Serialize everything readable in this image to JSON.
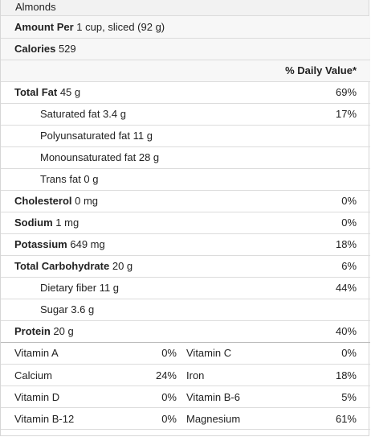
{
  "food_name": "Almonds",
  "amount": {
    "label": "Amount Per",
    "value": "1 cup, sliced (92 g)"
  },
  "calories": {
    "label": "Calories",
    "value": "529"
  },
  "daily_value_header": "% Daily Value*",
  "nutrients": [
    {
      "label": "Total Fat",
      "amount": "45 g",
      "dv": "69%"
    },
    {
      "label": "Saturated fat 3.4 g",
      "dv": "17%"
    },
    {
      "label": "Polyunsaturated fat 11 g",
      "dv": ""
    },
    {
      "label": "Monounsaturated fat 28 g",
      "dv": ""
    },
    {
      "label": "Trans fat 0 g",
      "dv": ""
    },
    {
      "label": "Cholesterol",
      "amount": "0 mg",
      "dv": "0%"
    },
    {
      "label": "Sodium",
      "amount": "1 mg",
      "dv": "0%"
    },
    {
      "label": "Potassium",
      "amount": "649 mg",
      "dv": "18%"
    },
    {
      "label": "Total Carbohydrate",
      "amount": "20 g",
      "dv": "6%"
    },
    {
      "label": "Dietary fiber 11 g",
      "dv": "44%"
    },
    {
      "label": "Sugar 3.6 g",
      "dv": ""
    },
    {
      "label": "Protein",
      "amount": "20 g",
      "dv": "40%"
    }
  ],
  "vitamins": [
    {
      "name1": "Vitamin A",
      "dv1": "0%",
      "name2": "Vitamin C",
      "dv2": "0%"
    },
    {
      "name1": "Calcium",
      "dv1": "24%",
      "name2": "Iron",
      "dv2": "18%"
    },
    {
      "name1": "Vitamin D",
      "dv1": "0%",
      "name2": "Vitamin B-6",
      "dv2": "5%"
    },
    {
      "name1": "Vitamin B-12",
      "dv1": "0%",
      "name2": "Magnesium",
      "dv2": "61%"
    }
  ]
}
